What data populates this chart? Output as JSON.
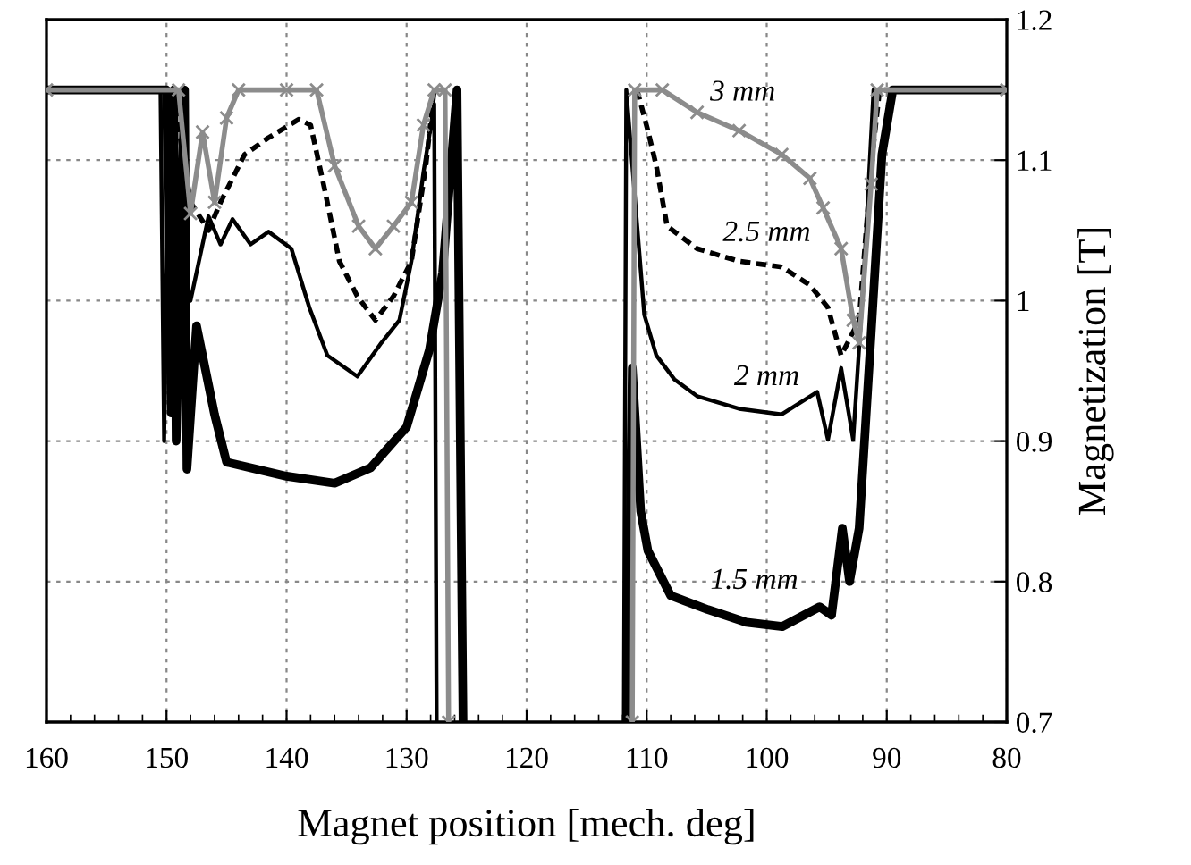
{
  "chart_data": {
    "type": "line",
    "xlabel": "Magnet position [mech. deg]",
    "ylabel": "Magnetization [T]",
    "xlim": [
      160,
      80
    ],
    "ylim": [
      0.7,
      1.2
    ],
    "xticks": [
      160,
      150,
      140,
      130,
      120,
      110,
      100,
      90,
      80
    ],
    "yticks": [
      0.7,
      0.8,
      0.9,
      1,
      1.1,
      1.2
    ],
    "grid": true,
    "series": [
      {
        "name": "1.5 mm",
        "color": "#000000",
        "line_style": "solid",
        "marker": "none",
        "x": [
          160,
          150,
          149.6,
          149.4,
          149.2,
          148.5,
          148.3,
          147.5,
          146,
          145,
          143,
          140,
          136,
          133,
          130,
          128.1,
          127,
          125.8,
          125.3,
          125,
          112,
          111.6,
          111.2,
          110.5,
          109.9,
          108,
          104.9,
          101.7,
          98.7,
          95.6,
          94.6,
          93.7,
          93.1,
          92.3,
          91.3,
          90.4,
          89.5,
          80
        ],
        "values": [
          1.15,
          1.15,
          0.92,
          1.15,
          0.9,
          1.15,
          0.88,
          0.982,
          0.919,
          0.885,
          0.881,
          0.875,
          0.87,
          0.881,
          0.91,
          0.965,
          1.02,
          1.15,
          0.7,
          null,
          null,
          0.7,
          0.952,
          0.85,
          0.822,
          0.79,
          0.78,
          0.771,
          0.768,
          0.782,
          0.776,
          0.838,
          0.8,
          0.838,
          0.977,
          1.104,
          1.15,
          1.15
        ]
      },
      {
        "name": "2 mm",
        "color": "#000000",
        "line_style": "solid",
        "marker": "none",
        "x": [
          160,
          150.5,
          150.2,
          149.8,
          149.4,
          148,
          146.5,
          145.5,
          144.5,
          143,
          141.5,
          139.6,
          138.1,
          136.6,
          134.1,
          132.1,
          130.6,
          129.6,
          128.6,
          127.7,
          127.5,
          127.3,
          112,
          111.9,
          111.7,
          110.2,
          109.2,
          107.7,
          105.8,
          102.3,
          98.75,
          95.8,
          94.9,
          93.8,
          92.8,
          91.9,
          91.1,
          80
        ],
        "values": [
          1.15,
          1.15,
          0.9,
          1.15,
          1.028,
          1.0,
          1.06,
          1.04,
          1.058,
          1.04,
          1.049,
          1.037,
          0.995,
          0.961,
          0.946,
          0.97,
          0.986,
          1.028,
          1.091,
          1.14,
          0.7,
          null,
          null,
          0.7,
          1.15,
          0.99,
          0.961,
          0.944,
          0.932,
          0.923,
          0.919,
          0.935,
          0.901,
          0.952,
          0.901,
          1.02,
          1.15,
          1.15
        ]
      },
      {
        "name": "2.5 mm",
        "color": "#000000",
        "line_style": "dashed",
        "marker": "none",
        "x": [
          160,
          149.5,
          148,
          146.5,
          145.5,
          143.5,
          141.5,
          139,
          138,
          136.8,
          135.6,
          134.1,
          132.6,
          131.1,
          129.6,
          128.4,
          127.7,
          120,
          110.8,
          109.9,
          109.2,
          108.3,
          105.8,
          102.3,
          98.75,
          96.4,
          94.9,
          93.8,
          92.3,
          91.3,
          90.6,
          80
        ],
        "values": [
          1.15,
          1.15,
          1.07,
          1.05,
          1.07,
          1.104,
          1.116,
          1.129,
          1.125,
          1.078,
          1.028,
          1.003,
          0.986,
          1.003,
          1.028,
          1.096,
          1.15,
          null,
          1.15,
          1.121,
          1.096,
          1.053,
          1.037,
          1.028,
          1.024,
          1.011,
          0.995,
          0.961,
          0.986,
          1.096,
          1.15,
          1.15
        ]
      },
      {
        "name": "3 mm",
        "color": "#8c8c8c",
        "line_style": "solid",
        "marker": "cross",
        "x": [
          160,
          149,
          148,
          147,
          146,
          145,
          144,
          140,
          137.5,
          136,
          134,
          132.6,
          131.1,
          129.6,
          128.6,
          127.7,
          126.8,
          126.5,
          126.3,
          112,
          111.2,
          111,
          108.7,
          105.8,
          102.3,
          98.75,
          96.4,
          95.3,
          93.8,
          92.8,
          92.3,
          91.3,
          90.8,
          80
        ],
        "values": [
          1.15,
          1.15,
          1.062,
          1.12,
          1.07,
          1.13,
          1.15,
          1.15,
          1.15,
          1.096,
          1.053,
          1.037,
          1.053,
          1.07,
          1.125,
          1.15,
          1.15,
          0.7,
          null,
          null,
          0.7,
          1.15,
          1.15,
          1.134,
          1.121,
          1.104,
          1.087,
          1.066,
          1.037,
          0.986,
          0.97,
          1.083,
          1.15,
          1.15
        ]
      }
    ]
  }
}
